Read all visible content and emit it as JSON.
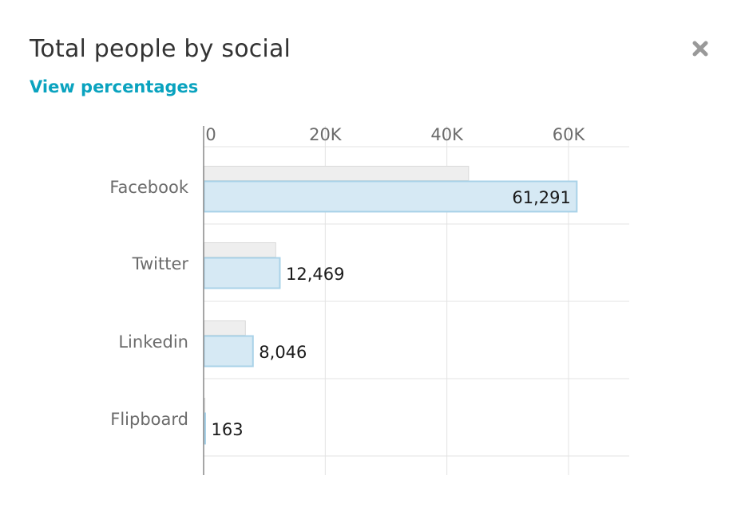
{
  "header": {
    "title": "Total people by social",
    "view_percentages_label": "View percentages"
  },
  "colors": {
    "primary_bar_fill": "#d6e9f4",
    "primary_bar_stroke": "#a9d2e8",
    "secondary_bar_fill": "#eeeeee",
    "secondary_bar_stroke": "#d9d9d9",
    "grid": "#e3e3e3",
    "axis": "#888888",
    "link": "#0aa3bf",
    "close_icon": "#999999"
  },
  "icons": {
    "close": "close-icon"
  },
  "chart_data": {
    "type": "bar",
    "orientation": "horizontal",
    "categories": [
      "Facebook",
      "Twitter",
      "Linkedin",
      "Flipboard"
    ],
    "series": [
      {
        "values": [
          43500,
          11800,
          6800,
          150
        ]
      },
      {
        "values": [
          61291,
          12469,
          8046,
          163
        ],
        "labels": [
          "61,291",
          "12,469",
          "8,046",
          "163"
        ]
      }
    ],
    "x_ticks": [
      0,
      20000,
      40000,
      60000
    ],
    "x_tick_labels": [
      "0",
      "20K",
      "40K",
      "60K"
    ],
    "xlim": [
      0,
      70000
    ],
    "axis_position": "top",
    "grid": true,
    "legend": "none"
  }
}
